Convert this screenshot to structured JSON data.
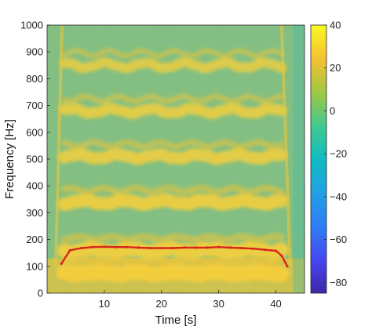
{
  "chart_data": {
    "type": "heatmap",
    "title": "",
    "xlabel": "Time [s]",
    "ylabel": "Frequency [Hz]",
    "xlim": [
      0,
      45
    ],
    "ylim": [
      0,
      1000
    ],
    "x_ticks": [
      10,
      20,
      30,
      40
    ],
    "y_ticks": [
      0,
      100,
      200,
      300,
      400,
      500,
      600,
      700,
      800,
      900,
      1000
    ],
    "colorbar": {
      "range": [
        -85,
        40
      ],
      "ticks": [
        40,
        20,
        0,
        -20,
        -40,
        -60,
        -80
      ],
      "colormap": "parula"
    },
    "harmonic_bands_hz": [
      75,
      160,
      340,
      510,
      680,
      850
    ],
    "pitch_track": {
      "name": "",
      "color": "#d8261c",
      "x": [
        2.5,
        4,
        6,
        8,
        10,
        12,
        14,
        16,
        18,
        20,
        22,
        24,
        26,
        28,
        30,
        32,
        34,
        36,
        38,
        40,
        41,
        42
      ],
      "y": [
        110,
        160,
        168,
        172,
        173,
        172,
        172,
        170,
        168,
        168,
        168,
        170,
        170,
        170,
        172,
        170,
        168,
        166,
        162,
        158,
        140,
        100
      ]
    }
  }
}
